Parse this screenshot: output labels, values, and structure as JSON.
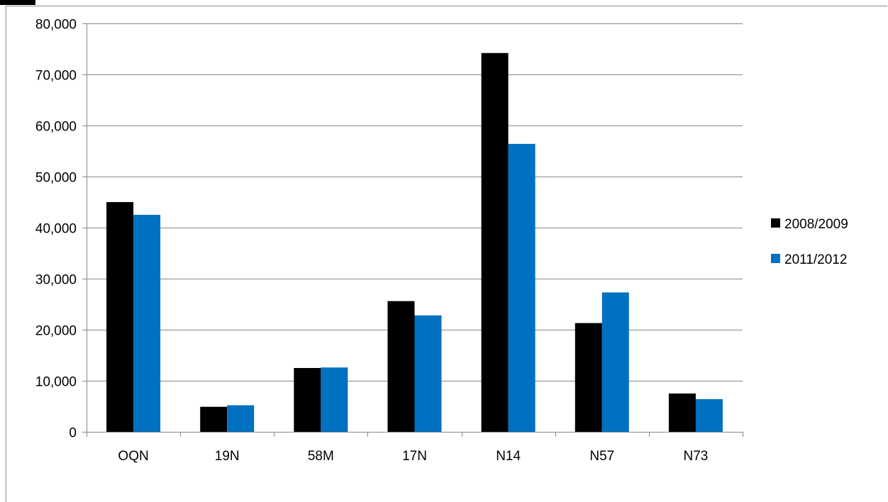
{
  "chart_data": {
    "type": "bar",
    "title": "",
    "xlabel": "",
    "ylabel": "",
    "categories": [
      "OQN",
      "19N",
      "58M",
      "17N",
      "N14",
      "N57",
      "N73"
    ],
    "series": [
      {
        "name": "2008/2009",
        "color": "#000000",
        "values": [
          45000,
          4900,
          12500,
          25600,
          74200,
          21300,
          7500
        ]
      },
      {
        "name": "2011/2012",
        "color": "#0070C0",
        "values": [
          42500,
          5200,
          12600,
          22800,
          56400,
          27300,
          6400
        ]
      }
    ],
    "ylim": [
      0,
      80000
    ],
    "yticks": [
      "0",
      "10,000",
      "20,000",
      "30,000",
      "40,000",
      "50,000",
      "60,000",
      "70,000",
      "80,000"
    ],
    "grid": true,
    "legend": "right",
    "gridline_color": "#868686"
  }
}
